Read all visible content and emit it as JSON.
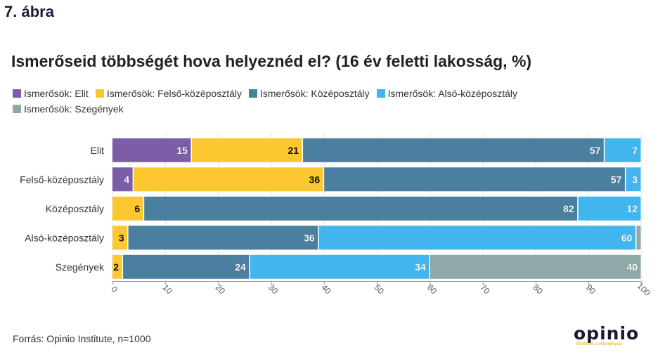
{
  "figure_label": "7. ábra",
  "source": "Forrás: Opinio Institute, n=1000",
  "logo": {
    "text": "opinio",
    "tagline": "Értékeink a véleményed",
    "accent": "#f5b800"
  },
  "chart_data": {
    "type": "bar",
    "orientation": "horizontal",
    "stacked": true,
    "title": "Ismerőseid többségét hova helyeznéd el? (16 év feletti lakosság, %)",
    "categories": [
      "Elit",
      "Felső-középosztály",
      "Középosztály",
      "Alsó-középosztály",
      "Szegények"
    ],
    "series": [
      {
        "name": "Ismerősök: Elit",
        "color": "#7b5ea7",
        "values": [
          15,
          4,
          0,
          0,
          0
        ]
      },
      {
        "name": "Ismerősök: Felső-középosztály",
        "color": "#fdc82f",
        "values": [
          21,
          36,
          6,
          3,
          2
        ]
      },
      {
        "name": "Ismerősök: Középosztály",
        "color": "#4a7fa0",
        "values": [
          57,
          57,
          82,
          36,
          24
        ]
      },
      {
        "name": "Ismerősök: Alsó-középosztály",
        "color": "#43b5ee",
        "values": [
          7,
          3,
          12,
          60,
          34
        ]
      },
      {
        "name": "Ismerősök: Szegények",
        "color": "#8fa9a9",
        "values": [
          0,
          0,
          0,
          1,
          40
        ]
      }
    ],
    "xlim": [
      0,
      100
    ],
    "xticks": [
      0,
      10,
      20,
      30,
      40,
      50,
      60,
      70,
      80,
      90,
      100
    ],
    "grid": true,
    "legend_position": "top-left"
  }
}
